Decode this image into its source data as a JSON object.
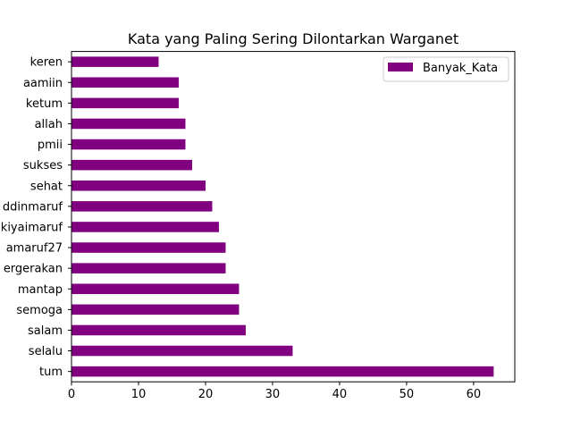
{
  "chart_data": {
    "type": "bar",
    "orientation": "horizontal",
    "title": "Kata yang Paling Sering Dilontarkan Warganet",
    "xlabel": "",
    "ylabel": "",
    "categories": [
      "tum",
      "selalu",
      "salam",
      "semoga",
      "mantap",
      "pergerakan",
      "amaruf27",
      "kiyaimaruf",
      "ddinmaruf",
      "sehat",
      "sukses",
      "pmii",
      "allah",
      "ketum",
      "aamiin",
      "keren"
    ],
    "category_labels": [
      "tum",
      "selalu",
      "salam",
      "semoga",
      "mantap",
      "ergerakan",
      "amaruf27",
      "kiyaimaruf",
      "ddinmaruf",
      "sehat",
      "sukses",
      "pmii",
      "allah",
      "ketum",
      "aamiin",
      "keren"
    ],
    "series": [
      {
        "name": "Banyak_Kata",
        "color": "#800080",
        "values": [
          63,
          33,
          26,
          25,
          25,
          23,
          23,
          22,
          21,
          20,
          18,
          17,
          17,
          16,
          16,
          13
        ]
      }
    ],
    "xlim": [
      0,
      66.15
    ],
    "xticks": [
      0,
      10,
      20,
      30,
      40,
      50,
      60
    ],
    "grid": false,
    "legend": "top-right"
  }
}
